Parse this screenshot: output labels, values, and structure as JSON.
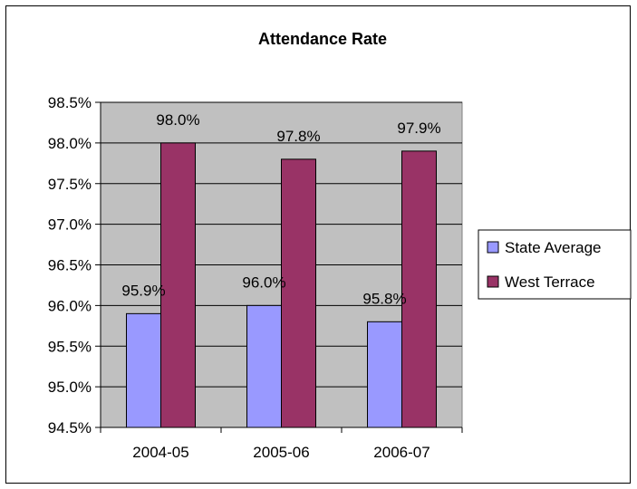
{
  "chart_data": {
    "type": "bar",
    "title": "Attendance Rate",
    "xlabel": "",
    "ylabel": "",
    "categories": [
      "2004-05",
      "2005-06",
      "2006-07"
    ],
    "series": [
      {
        "name": "State Average",
        "values": [
          95.9,
          96.0,
          95.8
        ],
        "labels": [
          "95.9%",
          "96.0%",
          "95.8%"
        ]
      },
      {
        "name": "West Terrace",
        "values": [
          98.0,
          97.8,
          97.9
        ],
        "labels": [
          "98.0%",
          "97.8%",
          "97.9%"
        ]
      }
    ],
    "ylim": [
      94.5,
      98.5
    ],
    "yticks": [
      94.5,
      95.0,
      95.5,
      96.0,
      96.5,
      97.0,
      97.5,
      98.0,
      98.5
    ],
    "ytick_labels": [
      "94.5%",
      "95.0%",
      "95.5%",
      "96.0%",
      "96.5%",
      "97.0%",
      "97.5%",
      "98.0%",
      "98.5%"
    ],
    "grid": true,
    "legend_position": "right",
    "colors": {
      "plot_background": "#c0c0c0",
      "State Average": "#9999ff",
      "West Terrace": "#993366",
      "gridline": "#000000"
    }
  }
}
